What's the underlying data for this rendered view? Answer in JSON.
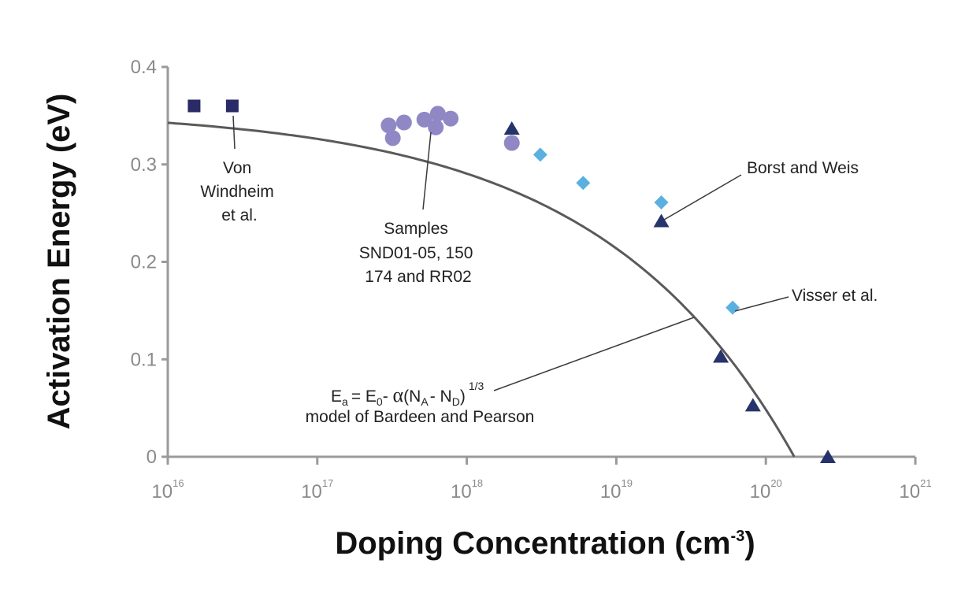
{
  "chart_data": {
    "type": "scatter",
    "title": "",
    "xlabel": "Doping Concentration (cm",
    "xlabel_sup": "-3",
    "xlabel_close": ")",
    "ylabel": "Activation Energy (eV)",
    "x_scale": "log",
    "xlim": [
      1e+16,
      1e+21
    ],
    "ylim": [
      0,
      0.4
    ],
    "x_tick_base": "10",
    "x_ticks": [
      {
        "value": 1e+16,
        "exp": "16"
      },
      {
        "value": 1e+17,
        "exp": "17"
      },
      {
        "value": 1e+18,
        "exp": "18"
      },
      {
        "value": 1e+19,
        "exp": "19"
      },
      {
        "value": 1e+20,
        "exp": "20"
      },
      {
        "value": 1e+21,
        "exp": "21"
      }
    ],
    "y_ticks": [
      {
        "value": 0,
        "label": "0"
      },
      {
        "value": 0.1,
        "label": "0.1"
      },
      {
        "value": 0.2,
        "label": "0.2"
      },
      {
        "value": 0.3,
        "label": "0.3"
      },
      {
        "value": 0.4,
        "label": "0.4"
      }
    ],
    "grid": false,
    "series": [
      {
        "marker": "square",
        "color": "#2a2a66",
        "points": [
          [
            1.5e+16,
            0.36
          ],
          [
            2.7e+16,
            0.36
          ]
        ]
      },
      {
        "marker": "circle",
        "color": "#9088c4",
        "points": [
          [
            3e+17,
            0.34
          ],
          [
            3.2e+17,
            0.327
          ],
          [
            3.8e+17,
            0.343
          ],
          [
            5.2e+17,
            0.346
          ],
          [
            6.2e+17,
            0.338
          ],
          [
            6.4e+17,
            0.352
          ],
          [
            7.8e+17,
            0.347
          ],
          [
            2e+18,
            0.322
          ]
        ]
      },
      {
        "marker": "diamond",
        "color": "#5ab1e0",
        "points": [
          [
            3.1e+18,
            0.31
          ],
          [
            6e+18,
            0.281
          ],
          [
            2e+19,
            0.261
          ],
          [
            6e+19,
            0.153
          ]
        ]
      },
      {
        "marker": "triangle",
        "color": "#27336b",
        "points": [
          [
            2e+18,
            0.337
          ],
          [
            2e+19,
            0.242
          ],
          [
            5e+19,
            0.103
          ],
          [
            8.2e+19,
            0.053
          ],
          [
            2.6e+20,
            0.0
          ]
        ]
      }
    ],
    "model_curve": {
      "E0": 0.357,
      "x0": 1e+16,
      "x_end": 1.55e+20,
      "color": "#5a5a5a"
    },
    "annotations": {
      "von_windheim": [
        "Von",
        "Windheim",
        "et al."
      ],
      "samples": [
        "Samples",
        "SND01-05, 150",
        "174 and RR02"
      ],
      "borst": "Borst and Weis",
      "visser": "Visser et al.",
      "model_formula": {
        "E": "E",
        "a": "a",
        "eq": "= E",
        "zero": "0",
        "minus": "- ",
        "alpha": "α",
        "open": "(N",
        "A": "A",
        "mid": "- N",
        "D": "D",
        "close": ")",
        "exp": "1/3"
      },
      "model_caption": "model of Bardeen and Pearson"
    }
  }
}
